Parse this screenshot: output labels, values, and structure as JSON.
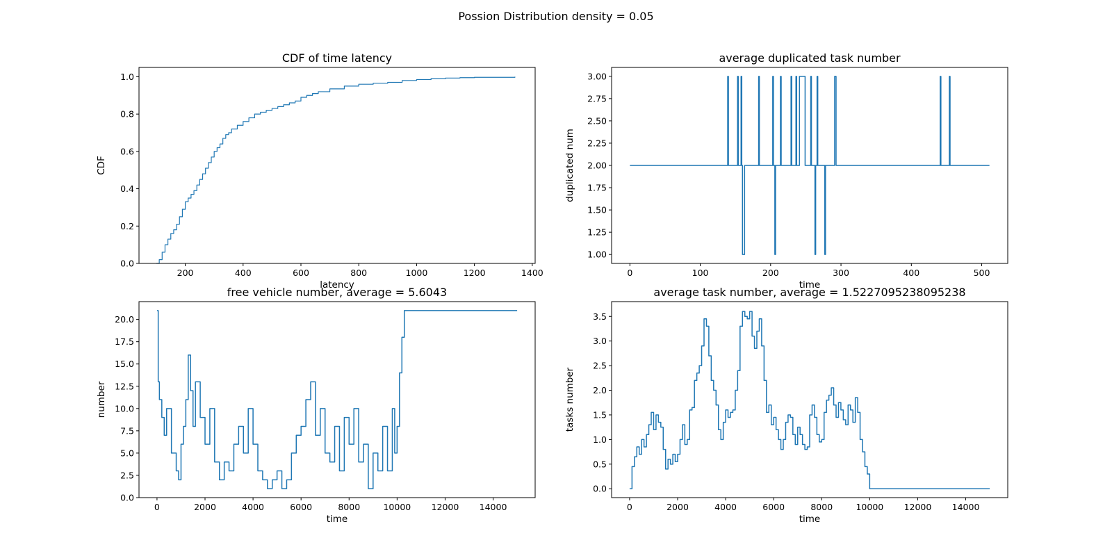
{
  "figure": {
    "suptitle": "Possion Distribution density = 0.05"
  },
  "chart_data": [
    {
      "type": "line",
      "drawstyle": "steps-post",
      "title": "CDF of time latency",
      "xlabel": "latency",
      "ylabel": "CDF",
      "xlim": [
        40,
        1410
      ],
      "ylim": [
        0,
        1.05
      ],
      "xticks": [
        200,
        400,
        600,
        800,
        1000,
        1200,
        1400
      ],
      "yticks": [
        0.0,
        0.2,
        0.4,
        0.6,
        0.8,
        1.0
      ],
      "ytick_decimals": 1,
      "color": "#1f77b4",
      "series": [
        {
          "x": [
            100,
            110,
            120,
            130,
            140,
            150,
            160,
            170,
            180,
            190,
            200,
            210,
            220,
            230,
            240,
            250,
            260,
            270,
            280,
            290,
            300,
            310,
            320,
            330,
            340,
            350,
            360,
            380,
            400,
            420,
            440,
            460,
            480,
            500,
            520,
            540,
            560,
            580,
            600,
            620,
            640,
            660,
            700,
            750,
            800,
            850,
            900,
            950,
            1000,
            1050,
            1100,
            1150,
            1200,
            1340
          ],
          "y": [
            0.0,
            0.02,
            0.06,
            0.1,
            0.13,
            0.16,
            0.18,
            0.21,
            0.25,
            0.29,
            0.33,
            0.35,
            0.37,
            0.39,
            0.42,
            0.45,
            0.48,
            0.51,
            0.54,
            0.57,
            0.6,
            0.62,
            0.64,
            0.67,
            0.69,
            0.7,
            0.72,
            0.74,
            0.76,
            0.78,
            0.8,
            0.81,
            0.82,
            0.83,
            0.84,
            0.85,
            0.86,
            0.87,
            0.89,
            0.9,
            0.91,
            0.92,
            0.935,
            0.95,
            0.96,
            0.965,
            0.97,
            0.98,
            0.985,
            0.99,
            0.993,
            0.995,
            0.997,
            1.0
          ]
        }
      ]
    },
    {
      "type": "line",
      "drawstyle": "steps-post",
      "title": "average duplicated task number",
      "xlabel": "time",
      "ylabel": "duplicated num",
      "xlim": [
        -26,
        537
      ],
      "ylim": [
        0.9,
        3.1
      ],
      "xticks": [
        0,
        100,
        200,
        300,
        400,
        500
      ],
      "yticks": [
        1.0,
        1.25,
        1.5,
        1.75,
        2.0,
        2.25,
        2.5,
        2.75,
        3.0
      ],
      "ytick_decimals": 2,
      "color": "#1f77b4",
      "baseline": 2,
      "x_end": 511,
      "series": [
        {
          "events": [
            {
              "x": 139,
              "y": 3
            },
            {
              "x": 153,
              "y": 3
            },
            {
              "x": 158,
              "y": 3
            },
            {
              "x": 160,
              "y": 1,
              "w": 3
            },
            {
              "x": 183,
              "y": 3
            },
            {
              "x": 203,
              "y": 3
            },
            {
              "x": 206,
              "y": 1
            },
            {
              "x": 214,
              "y": 3
            },
            {
              "x": 229,
              "y": 3
            },
            {
              "x": 236,
              "y": 3
            },
            {
              "x": 241,
              "y": 3,
              "w": 8
            },
            {
              "x": 257,
              "y": 3
            },
            {
              "x": 263,
              "y": 1
            },
            {
              "x": 266,
              "y": 3
            },
            {
              "x": 277,
              "y": 1
            },
            {
              "x": 291,
              "y": 3,
              "w": 2
            },
            {
              "x": 441,
              "y": 3
            },
            {
              "x": 454,
              "y": 3
            }
          ]
        }
      ]
    },
    {
      "type": "line",
      "drawstyle": "steps-post",
      "title": "free vehicle number, average = 5.6043",
      "xlabel": "time",
      "ylabel": "number",
      "xlim": [
        -750,
        15750
      ],
      "ylim": [
        0,
        22
      ],
      "xticks": [
        0,
        2000,
        4000,
        6000,
        8000,
        10000,
        12000,
        14000
      ],
      "yticks": [
        0.0,
        2.5,
        5.0,
        7.5,
        10.0,
        12.5,
        15.0,
        17.5,
        20.0
      ],
      "ytick_decimals": 1,
      "color": "#1f77b4",
      "series": [
        {
          "x": [
            0,
            50,
            100,
            200,
            300,
            400,
            600,
            800,
            900,
            1000,
            1100,
            1200,
            1300,
            1400,
            1500,
            1600,
            1800,
            2000,
            2200,
            2400,
            2600,
            2800,
            3000,
            3200,
            3400,
            3600,
            3800,
            4000,
            4200,
            4400,
            4600,
            4800,
            5000,
            5200,
            5400,
            5600,
            5800,
            6000,
            6200,
            6400,
            6600,
            6800,
            7000,
            7200,
            7400,
            7600,
            7800,
            8000,
            8200,
            8400,
            8600,
            8800,
            9000,
            9200,
            9400,
            9600,
            9800,
            9900,
            10000,
            10100,
            10200,
            10300,
            15000
          ],
          "y": [
            21,
            13,
            11,
            9,
            7,
            10,
            5,
            3,
            2,
            6,
            8,
            11,
            16,
            12,
            8,
            13,
            9,
            6,
            10,
            4,
            2,
            4,
            3,
            6,
            8,
            5,
            10,
            6,
            3,
            2,
            1,
            2,
            3,
            1,
            2,
            5,
            7,
            8,
            11,
            13,
            7,
            10,
            5,
            4,
            8,
            3,
            9,
            6,
            10,
            4,
            6,
            1,
            5,
            3,
            8,
            3,
            10,
            5,
            8,
            14,
            18,
            21,
            21
          ]
        }
      ]
    },
    {
      "type": "line",
      "drawstyle": "steps-post",
      "title": "average task number, average = 1.5227095238095238",
      "xlabel": "time",
      "ylabel": "tasks number",
      "xlim": [
        -750,
        15750
      ],
      "ylim": [
        -0.18,
        3.8
      ],
      "xticks": [
        0,
        2000,
        4000,
        6000,
        8000,
        10000,
        12000,
        14000
      ],
      "yticks": [
        0.0,
        0.5,
        1.0,
        1.5,
        2.0,
        2.5,
        3.0,
        3.5
      ],
      "ytick_decimals": 1,
      "color": "#1f77b4",
      "series": [
        {
          "x": [
            0,
            100,
            200,
            300,
            400,
            500,
            600,
            700,
            800,
            900,
            1000,
            1100,
            1200,
            1300,
            1400,
            1500,
            1600,
            1700,
            1800,
            1900,
            2000,
            2100,
            2200,
            2300,
            2400,
            2500,
            2600,
            2700,
            2800,
            2900,
            3000,
            3100,
            3200,
            3300,
            3400,
            3500,
            3600,
            3700,
            3800,
            3900,
            4000,
            4100,
            4200,
            4300,
            4400,
            4500,
            4600,
            4700,
            4800,
            4900,
            5000,
            5100,
            5200,
            5300,
            5400,
            5500,
            5600,
            5700,
            5800,
            5900,
            6000,
            6100,
            6200,
            6300,
            6400,
            6500,
            6600,
            6700,
            6800,
            6900,
            7000,
            7100,
            7200,
            7300,
            7400,
            7500,
            7600,
            7700,
            7800,
            7900,
            8000,
            8100,
            8200,
            8300,
            8400,
            8500,
            8600,
            8700,
            8800,
            8900,
            9000,
            9100,
            9200,
            9300,
            9400,
            9500,
            9600,
            9700,
            9800,
            9900,
            10000,
            10100,
            10200,
            10300,
            15000
          ],
          "y": [
            0.0,
            0.45,
            0.65,
            0.85,
            0.7,
            1.0,
            0.85,
            1.1,
            1.3,
            1.55,
            1.2,
            1.5,
            1.35,
            1.25,
            0.8,
            0.4,
            0.6,
            0.5,
            0.7,
            0.55,
            0.7,
            1.0,
            1.3,
            0.9,
            1.0,
            1.6,
            1.65,
            2.2,
            2.35,
            2.5,
            2.9,
            3.45,
            3.3,
            2.7,
            2.2,
            2.0,
            1.7,
            1.2,
            1.0,
            1.35,
            1.6,
            1.45,
            1.55,
            1.6,
            2.0,
            2.4,
            3.3,
            3.6,
            3.5,
            3.45,
            3.6,
            3.1,
            2.85,
            3.2,
            3.45,
            2.9,
            2.2,
            1.55,
            1.7,
            1.3,
            1.45,
            1.2,
            1.0,
            0.8,
            1.0,
            1.35,
            1.5,
            1.45,
            1.1,
            0.9,
            1.25,
            1.1,
            0.9,
            0.8,
            0.85,
            1.5,
            1.7,
            1.45,
            1.1,
            0.95,
            1.0,
            1.55,
            1.8,
            1.9,
            2.05,
            1.7,
            1.45,
            1.75,
            1.6,
            1.4,
            1.3,
            1.7,
            1.6,
            1.35,
            1.85,
            1.55,
            1.0,
            0.75,
            0.45,
            0.3,
            0.0,
            0.0,
            0.0,
            0.0,
            0.0
          ]
        }
      ]
    }
  ]
}
